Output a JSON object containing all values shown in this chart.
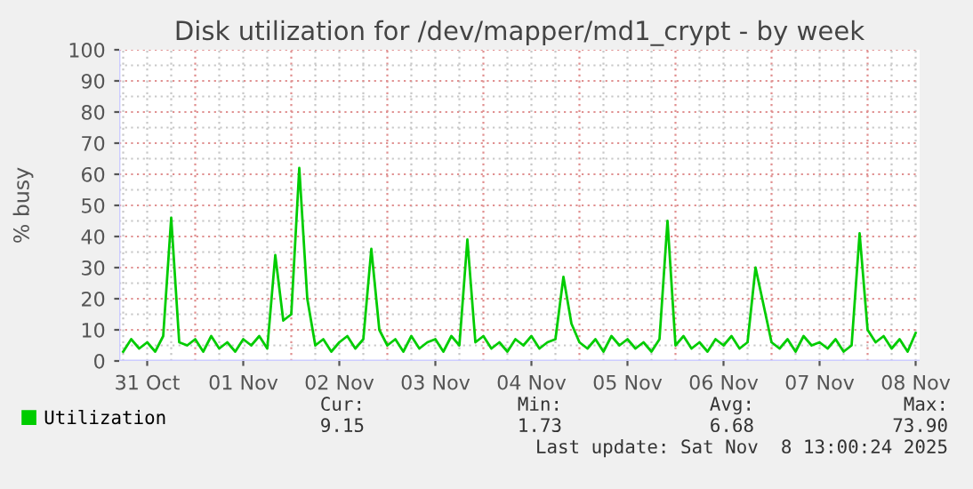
{
  "chart_data": {
    "type": "line",
    "title": "Disk utilization for /dev/mapper/md1_crypt - by week",
    "ylabel": "% busy",
    "x": [
      "2025-10-31T06:00",
      "2025-10-31T08:00",
      "2025-10-31T10:00",
      "2025-10-31T12:00",
      "2025-10-31T14:00",
      "2025-10-31T16:00",
      "2025-10-31T18:00",
      "2025-10-31T20:00",
      "2025-10-31T22:00",
      "2025-11-01T00:00",
      "2025-11-01T02:00",
      "2025-11-01T04:00",
      "2025-11-01T06:00",
      "2025-11-01T08:00",
      "2025-11-01T10:00",
      "2025-11-01T12:00",
      "2025-11-01T14:00",
      "2025-11-01T16:00",
      "2025-11-01T18:00",
      "2025-11-01T20:00",
      "2025-11-01T22:00",
      "2025-11-02T00:00",
      "2025-11-02T02:00",
      "2025-11-02T04:00",
      "2025-11-02T06:00",
      "2025-11-02T08:00",
      "2025-11-02T10:00",
      "2025-11-02T12:00",
      "2025-11-02T14:00",
      "2025-11-02T16:00",
      "2025-11-02T18:00",
      "2025-11-02T20:00",
      "2025-11-02T22:00",
      "2025-11-03T00:00",
      "2025-11-03T02:00",
      "2025-11-03T04:00",
      "2025-11-03T06:00",
      "2025-11-03T08:00",
      "2025-11-03T10:00",
      "2025-11-03T12:00",
      "2025-11-03T14:00",
      "2025-11-03T16:00",
      "2025-11-03T18:00",
      "2025-11-03T20:00",
      "2025-11-03T22:00",
      "2025-11-04T00:00",
      "2025-11-04T02:00",
      "2025-11-04T04:00",
      "2025-11-04T06:00",
      "2025-11-04T08:00",
      "2025-11-04T10:00",
      "2025-11-04T12:00",
      "2025-11-04T14:00",
      "2025-11-04T16:00",
      "2025-11-04T18:00",
      "2025-11-04T20:00",
      "2025-11-04T22:00",
      "2025-11-05T00:00",
      "2025-11-05T02:00",
      "2025-11-05T04:00",
      "2025-11-05T06:00",
      "2025-11-05T08:00",
      "2025-11-05T10:00",
      "2025-11-05T12:00",
      "2025-11-05T14:00",
      "2025-11-05T16:00",
      "2025-11-05T18:00",
      "2025-11-05T20:00",
      "2025-11-05T22:00",
      "2025-11-06T00:00",
      "2025-11-06T02:00",
      "2025-11-06T04:00",
      "2025-11-06T06:00",
      "2025-11-06T08:00",
      "2025-11-06T10:00",
      "2025-11-06T12:00",
      "2025-11-06T14:00",
      "2025-11-06T16:00",
      "2025-11-06T18:00",
      "2025-11-06T20:00",
      "2025-11-06T22:00",
      "2025-11-07T00:00",
      "2025-11-07T02:00",
      "2025-11-07T04:00",
      "2025-11-07T06:00",
      "2025-11-07T08:00",
      "2025-11-07T10:00",
      "2025-11-07T12:00",
      "2025-11-07T14:00",
      "2025-11-07T16:00",
      "2025-11-07T18:00",
      "2025-11-07T20:00",
      "2025-11-07T22:00",
      "2025-11-08T00:00",
      "2025-11-08T02:00",
      "2025-11-08T04:00",
      "2025-11-08T06:00",
      "2025-11-08T08:00",
      "2025-11-08T10:00",
      "2025-11-08T12:00"
    ],
    "series": [
      {
        "name": "Utilization",
        "color": "#00cc00",
        "values": [
          3,
          7,
          4,
          6,
          3,
          8,
          46,
          6,
          5,
          7,
          3,
          8,
          4,
          6,
          3,
          7,
          5,
          8,
          4,
          34,
          13,
          15,
          62,
          20,
          5,
          7,
          3,
          6,
          8,
          4,
          7,
          36,
          10,
          5,
          7,
          3,
          8,
          4,
          6,
          7,
          3,
          8,
          5,
          39,
          6,
          8,
          4,
          6,
          3,
          7,
          5,
          8,
          4,
          6,
          7,
          27,
          12,
          6,
          4,
          7,
          3,
          8,
          5,
          7,
          4,
          6,
          3,
          7,
          45,
          5,
          8,
          4,
          6,
          3,
          7,
          5,
          8,
          4,
          6,
          30,
          18,
          6,
          4,
          7,
          3,
          8,
          5,
          6,
          4,
          7,
          3,
          5,
          41,
          10,
          6,
          8,
          4,
          7,
          3,
          9
        ]
      }
    ],
    "xlim": [
      "2025-10-31T05:00",
      "2025-11-08T13:00"
    ],
    "xticks": [
      {
        "value": "2025-10-31T12:00",
        "label": "31 Oct"
      },
      {
        "value": "2025-11-01T12:00",
        "label": "01 Nov"
      },
      {
        "value": "2025-11-02T12:00",
        "label": "02 Nov"
      },
      {
        "value": "2025-11-03T12:00",
        "label": "03 Nov"
      },
      {
        "value": "2025-11-04T12:00",
        "label": "04 Nov"
      },
      {
        "value": "2025-11-05T12:00",
        "label": "05 Nov"
      },
      {
        "value": "2025-11-06T12:00",
        "label": "06 Nov"
      },
      {
        "value": "2025-11-07T12:00",
        "label": "07 Nov"
      },
      {
        "value": "2025-11-08T12:00",
        "label": "08 Nov"
      }
    ],
    "ylim": [
      0,
      100
    ],
    "yticks": [
      0,
      10,
      20,
      30,
      40,
      50,
      60,
      70,
      80,
      90,
      100
    ],
    "grid": true,
    "legend": "bottom left",
    "marker": "none",
    "line_style": "solid",
    "annotations": [
      "Cur:",
      "9.15",
      "Min:",
      "1.73",
      "Avg:",
      "6.68",
      "Max:",
      "73.90",
      "Last update: Sat Nov  8 13:00:24 2025"
    ]
  }
}
